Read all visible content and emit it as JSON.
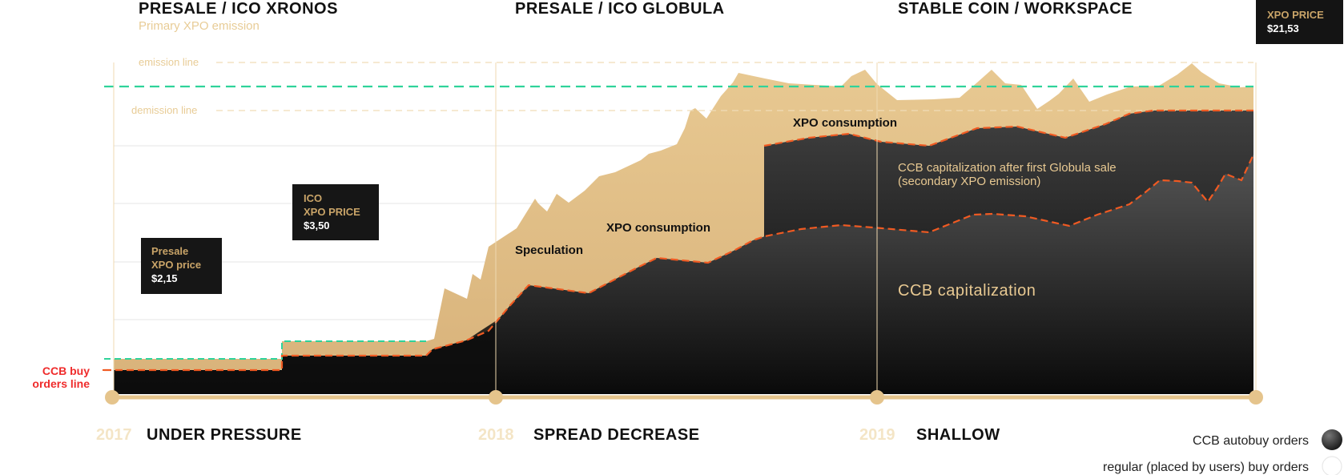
{
  "phases": [
    {
      "title": "PRESALE / ICO XRONOS",
      "subtitle": "Primary XPO emission"
    },
    {
      "title": "PRESALE / ICO GLOBULA"
    },
    {
      "title": "STABLE COIN / WORKSPACE"
    }
  ],
  "price_badge": {
    "label": "XPO PRICE",
    "value": "$21,53"
  },
  "guides": {
    "emission": "emission line",
    "demission": "demission line"
  },
  "boxes": {
    "presale": {
      "line1": "Presale",
      "line2": "XPO price",
      "value": "$2,15"
    },
    "ico": {
      "line1": "ICO",
      "line2": "XPO PRICE",
      "value": "$3,50"
    }
  },
  "annotations": {
    "speculation": "Speculation",
    "consumption_1": "XPO consumption",
    "consumption_2": "XPO consumption",
    "after_globula_1": "CCB capitalization after first Globula sale",
    "after_globula_2": "(secondary XPO emission)",
    "ccb_cap": "CCB capitalization"
  },
  "red_label": {
    "line1": "CCB buy",
    "line2": "orders line"
  },
  "timeline": [
    {
      "year": "2017",
      "label": "UNDER PRESSURE"
    },
    {
      "year": "2018",
      "label": "SPREAD DECREASE"
    },
    {
      "year": "2019",
      "label": "SHALLOW"
    }
  ],
  "legend": [
    {
      "label": "CCB autobuy orders",
      "swatch": "dark"
    },
    {
      "label": "regular (placed by users) buy orders",
      "swatch": "light"
    }
  ],
  "colors": {
    "gold": "#e3c28a",
    "dark": "#1a1a1a",
    "red_line": "#f05a22",
    "green_line": "#2fd39a",
    "label_red": "#ef2b2b"
  },
  "chart_data": {
    "type": "area",
    "title": "",
    "xlabel": "",
    "ylabel": "",
    "x_ticks": [
      "2017",
      "2018",
      "2019"
    ],
    "series": [
      {
        "name": "Speculation",
        "style": "gold area (top envelope)",
        "values": [
          0.72,
          0.72,
          0.72,
          0.72,
          1.0,
          1.0,
          1.0,
          1.0,
          1.5,
          1.0,
          3.2,
          3.8,
          4.3,
          5.7,
          6.0,
          7.3,
          7.5,
          6.2,
          7.5,
          8.2,
          7.0,
          8.5,
          9.3,
          9.5,
          9.9,
          10.5,
          11.6,
          11.2,
          13.0,
          15.1,
          14.5,
          15.7,
          16.7,
          16.3,
          17.3,
          15.8,
          16.0,
          16.4,
          16.1,
          16.2,
          16.4,
          16.1
        ]
      },
      {
        "name": "XPO consumption",
        "style": "gold area"
      },
      {
        "name": "CCB capitalization after first Globula sale (secondary XPO emission)",
        "style": "dark area (stepped band)",
        "values": [
          0.0,
          0.0,
          0.0,
          0.0,
          0.7,
          0.7,
          0.7,
          0.7,
          12.2,
          12.2,
          12.3,
          12.9,
          13.1,
          13.6,
          12.7,
          12.4,
          13.0,
          13.8,
          14.0,
          14.7,
          15.5,
          16.5,
          16.6,
          16.8
        ]
      },
      {
        "name": "CCB capitalization",
        "style": "dark-grey area",
        "values": [
          0.72,
          0.72,
          0.72,
          0.72,
          1.0,
          1.0,
          1.0,
          2.7,
          4.7,
          4.4,
          6.3,
          6.0,
          7.3,
          8.2,
          8.6,
          8.9,
          8.6,
          8.0,
          8.9,
          8.9,
          8.3,
          9.6,
          10.3,
          10.4,
          11.5,
          11.4,
          10.4,
          12.0,
          11.6,
          12.8
        ]
      }
    ],
    "reference_lines": [
      "emission line",
      "demission line",
      "CCB buy orders line"
    ],
    "price_points": [
      {
        "label": "Presale XPO price",
        "value": 2.15
      },
      {
        "label": "ICO XPO PRICE",
        "value": 3.5
      },
      {
        "label": "XPO PRICE",
        "value": 21.53
      }
    ]
  }
}
